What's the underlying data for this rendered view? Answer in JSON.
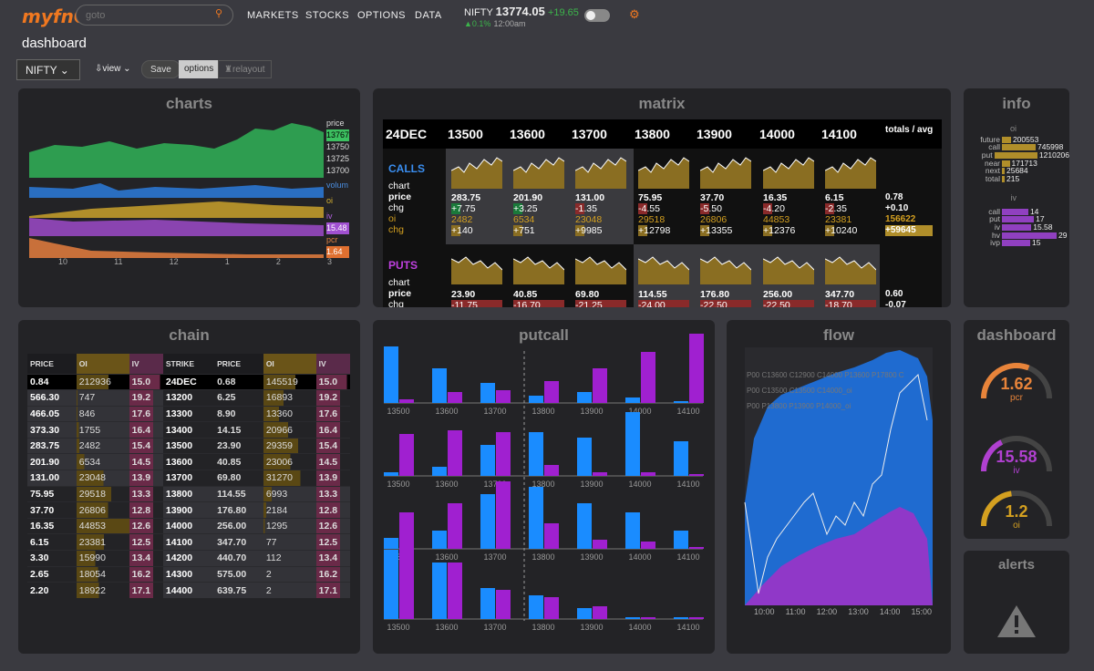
{
  "topbar": {
    "logo": "myfnO",
    "search_placeholder": "goto",
    "nav": [
      "MARKETS",
      "STOCKS",
      "OPTIONS",
      "DATA"
    ],
    "index_name": "NIFTY",
    "index_value": "13774.05",
    "index_change": "+19.65",
    "index_pct": "▲0.1%",
    "index_time": "12:00am"
  },
  "page": {
    "title": "dashboard",
    "symbol": "NIFTY ⌄",
    "view": "view ⌄",
    "save": "Save",
    "options": "options",
    "relayout": "relayout"
  },
  "charts": {
    "title": "charts",
    "labels": [
      "price",
      "13767",
      "13750",
      "13725",
      "13700",
      "volum",
      "oi",
      "iv",
      "15.48",
      "pcr",
      "1.64"
    ],
    "xticks": [
      "10",
      "11",
      "12",
      "1",
      "2",
      "3"
    ]
  },
  "matrix": {
    "title": "matrix",
    "expiry": "24DEC",
    "strikes": [
      "13500",
      "13600",
      "13700",
      "13800",
      "13900",
      "14000",
      "14100"
    ],
    "totals_label": "totals / avg",
    "calls_label": "CALLS",
    "puts_label": "PUTS",
    "row_labels": [
      "chart",
      "price",
      "chg",
      "oi",
      "chg"
    ],
    "calls": {
      "price": [
        "283.75",
        "201.90",
        "131.00",
        "75.95",
        "37.70",
        "16.35",
        "6.15"
      ],
      "chg": [
        "+7.75",
        "+3.25",
        "-1.35",
        "-4.55",
        "-5.50",
        "-4.20",
        "-2.35"
      ],
      "oi": [
        "2482",
        "6534",
        "23048",
        "29518",
        "26806",
        "44853",
        "23381"
      ],
      "oichg": [
        "+140",
        "+751",
        "+9985",
        "+12798",
        "+13355",
        "+12376",
        "+10240"
      ],
      "totals": [
        "0.78",
        "+0.10",
        "156622",
        "+59645"
      ]
    },
    "puts": {
      "price": [
        "23.90",
        "40.85",
        "69.80",
        "114.55",
        "176.80",
        "256.00",
        "347.70"
      ],
      "chg": [
        "-11.75",
        "-16.70",
        "-21.25",
        "-24.00",
        "-22.50",
        "-22.50",
        "-18.70"
      ],
      "totals": [
        "0.60",
        "-0.07"
      ]
    }
  },
  "info": {
    "title": "info",
    "oi_header": "oi",
    "oi": [
      [
        "future",
        "200553"
      ],
      [
        "call",
        "745998"
      ],
      [
        "put",
        "1210206"
      ],
      [
        "near",
        "171713"
      ],
      [
        "next",
        "25684"
      ],
      [
        "total",
        "215"
      ]
    ],
    "iv_header": "iv",
    "iv": [
      [
        "call",
        "14"
      ],
      [
        "put",
        "17"
      ],
      [
        "iv",
        "15.58"
      ],
      [
        "hv",
        "29"
      ],
      [
        "ivp",
        "15"
      ]
    ]
  },
  "chain": {
    "title": "chain",
    "headers": [
      "PRICE",
      "OI",
      "IV",
      "STRIKE",
      "PRICE",
      "OI",
      "IV"
    ],
    "rows": [
      [
        "0.84",
        "212936",
        "15.0",
        "24DEC",
        "0.68",
        "145519",
        "15.0"
      ],
      [
        "566.30",
        "747",
        "19.2",
        "13200",
        "6.25",
        "16893",
        "19.2"
      ],
      [
        "466.05",
        "846",
        "17.6",
        "13300",
        "8.90",
        "13360",
        "17.6"
      ],
      [
        "373.30",
        "1755",
        "16.4",
        "13400",
        "14.15",
        "20966",
        "16.4"
      ],
      [
        "283.75",
        "2482",
        "15.4",
        "13500",
        "23.90",
        "29359",
        "15.4"
      ],
      [
        "201.90",
        "6534",
        "14.5",
        "13600",
        "40.85",
        "23006",
        "14.5"
      ],
      [
        "131.00",
        "23048",
        "13.9",
        "13700",
        "69.80",
        "31270",
        "13.9"
      ],
      [
        "75.95",
        "29518",
        "13.3",
        "13800",
        "114.55",
        "6993",
        "13.3"
      ],
      [
        "37.70",
        "26806",
        "12.8",
        "13900",
        "176.80",
        "2184",
        "12.8"
      ],
      [
        "16.35",
        "44853",
        "12.6",
        "14000",
        "256.00",
        "1295",
        "12.6"
      ],
      [
        "6.15",
        "23381",
        "12.5",
        "14100",
        "347.70",
        "77",
        "12.5"
      ],
      [
        "3.30",
        "15990",
        "13.4",
        "14200",
        "440.70",
        "112",
        "13.4"
      ],
      [
        "2.65",
        "18054",
        "16.2",
        "14300",
        "575.00",
        "2",
        "16.2"
      ],
      [
        "2.20",
        "18922",
        "17.1",
        "14400",
        "639.75",
        "2",
        "17.1"
      ]
    ]
  },
  "putcall": {
    "title": "putcall",
    "strikes": [
      "13500",
      "13600",
      "13700",
      "13800",
      "13900",
      "14000",
      "14100"
    ],
    "groups": [
      {
        "calls": [
          62,
          38,
          22,
          8,
          12,
          6,
          2
        ],
        "puts": [
          4,
          12,
          14,
          24,
          38,
          56,
          76
        ]
      },
      {
        "calls": [
          4,
          10,
          34,
          48,
          42,
          70,
          38
        ],
        "puts": [
          46,
          50,
          48,
          12,
          4,
          4,
          2
        ]
      },
      {
        "calls": [
          12,
          20,
          60,
          68,
          50,
          40,
          20
        ],
        "puts": [
          40,
          50,
          74,
          28,
          10,
          8,
          2
        ]
      },
      {
        "calls": [
          76,
          62,
          34,
          26,
          12,
          2,
          2
        ],
        "puts": [
          78,
          62,
          32,
          24,
          14,
          2,
          2
        ]
      }
    ]
  },
  "flow": {
    "title": "flow",
    "legend": [
      "P00 C13600 C12900 C14000 P13600 P17800 C",
      "P00 C13500 C13500 C14000_oi",
      "P00 P13800 P13900 P14000_oi"
    ],
    "xticks": [
      "10:00",
      "11:00",
      "12:00",
      "13:00",
      "14:00",
      "15:00"
    ]
  },
  "dashboard": {
    "title": "dashboard",
    "gauges": [
      {
        "value": "1.62",
        "label": "pcr",
        "color": "#e8843a",
        "fill": 0.62
      },
      {
        "value": "15.58",
        "label": "iv",
        "color": "#b040d0",
        "fill": 0.35
      },
      {
        "value": "1.2",
        "label": "oi",
        "color": "#d4a020",
        "fill": 0.45
      }
    ]
  },
  "alerts": {
    "title": "alerts",
    "icon": "warning-icon"
  }
}
